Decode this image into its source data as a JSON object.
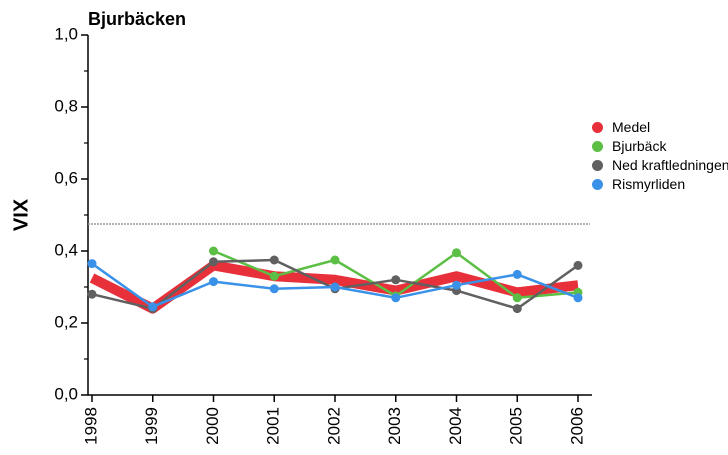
{
  "chart_data": {
    "type": "line",
    "title": "Bjurbäcken",
    "y_label": "VIX",
    "categories": [
      "1998",
      "1999",
      "2000",
      "2001",
      "2002",
      "2003",
      "2004",
      "2005",
      "2006"
    ],
    "series": [
      {
        "name": "Medel",
        "color": "#e8303a",
        "markers": false,
        "values": [
          0.325,
          0.24,
          0.36,
          0.33,
          0.32,
          0.29,
          0.33,
          0.285,
          0.305
        ]
      },
      {
        "name": "Bjurbäck",
        "color": "#5cbf45",
        "markers": true,
        "values": [
          null,
          null,
          0.4,
          0.33,
          0.375,
          0.275,
          0.395,
          0.27,
          0.285
        ]
      },
      {
        "name": "Ned kraftledningen",
        "color": "#606060",
        "markers": true,
        "values": [
          0.28,
          0.24,
          0.37,
          0.375,
          0.295,
          0.32,
          0.29,
          0.24,
          0.36
        ]
      },
      {
        "name": "Rismyrliden",
        "color": "#3a92e8",
        "markers": true,
        "values": [
          0.365,
          0.245,
          0.315,
          0.295,
          0.3,
          0.27,
          0.305,
          0.335,
          0.27
        ]
      }
    ],
    "ylim": [
      0,
      1
    ],
    "yticks": [
      {
        "value": 0,
        "label": "0,0"
      },
      {
        "value": 0.2,
        "label": "0,2"
      },
      {
        "value": 0.4,
        "label": "0,4"
      },
      {
        "value": 0.6,
        "label": "0,6"
      },
      {
        "value": 0.8,
        "label": "0,8"
      },
      {
        "value": 1,
        "label": "1,0"
      }
    ],
    "reference_line": 0.475,
    "legend": "right"
  }
}
